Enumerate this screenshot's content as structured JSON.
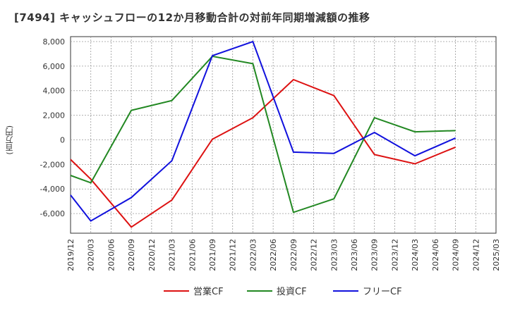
{
  "chart_data": {
    "type": "line",
    "title": "[7494]  キャッシュフローの12か月移動合計の対前年同期増減額の推移",
    "ylabel": "(百万円)",
    "xlabel": "",
    "ylim": [
      -7600,
      8400
    ],
    "yticks": [
      8000,
      6000,
      4000,
      2000,
      0,
      -2000,
      -4000,
      -6000
    ],
    "ytick_labels": [
      "8,000",
      "6,000",
      "4,000",
      "2,000",
      "0",
      "-2,000",
      "-4,000",
      "-6,000"
    ],
    "categories": [
      "2019/12",
      "2020/03",
      "2020/06",
      "2020/09",
      "2020/12",
      "2021/03",
      "2021/06",
      "2021/09",
      "2021/12",
      "2022/03",
      "2022/06",
      "2022/09",
      "2022/12",
      "2023/03",
      "2023/06",
      "2023/09",
      "2023/12",
      "2024/03",
      "2024/06",
      "2024/09",
      "2024/12",
      "2025/03"
    ],
    "series": [
      {
        "name": "営業CF",
        "color": "#dd1111",
        "values": [
          -1600,
          -3200,
          null,
          -7100,
          null,
          -4900,
          null,
          50,
          null,
          1800,
          null,
          4900,
          null,
          3600,
          null,
          -1200,
          null,
          -1950,
          null,
          -600,
          null,
          null
        ]
      },
      {
        "name": "投資CF",
        "color": "#228822",
        "values": [
          -2900,
          -3500,
          null,
          2400,
          null,
          3200,
          null,
          6800,
          null,
          6200,
          null,
          -5900,
          null,
          -4800,
          null,
          1800,
          null,
          650,
          null,
          750,
          null,
          null
        ]
      },
      {
        "name": "フリーCF",
        "color": "#1111dd",
        "values": [
          -4500,
          -6600,
          null,
          -4700,
          null,
          -1700,
          null,
          6850,
          null,
          8000,
          null,
          -1000,
          null,
          -1100,
          null,
          600,
          null,
          -1300,
          null,
          150,
          null,
          null
        ]
      }
    ],
    "grid": true,
    "legend": "bottom-center"
  }
}
